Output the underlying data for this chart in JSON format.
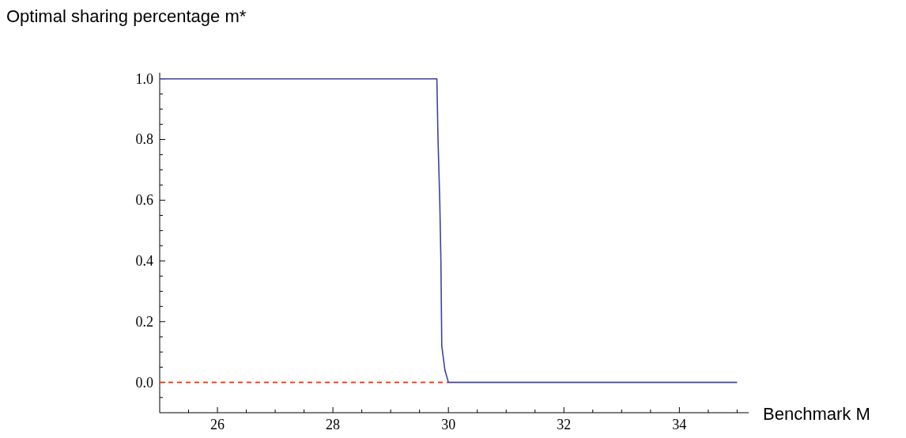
{
  "chart_data": {
    "type": "line",
    "ylabel": "Optimal sharing percentage m*",
    "xlabel": "Benchmark M",
    "xlim": [
      25,
      35.2
    ],
    "ylim": [
      -0.1,
      1.02
    ],
    "xticks": [
      {
        "value": 25.5,
        "label": null
      },
      26,
      {
        "value": 26.5,
        "label": null
      },
      {
        "value": 27,
        "label": null
      },
      {
        "value": 27.5,
        "label": null
      },
      28,
      {
        "value": 28.5,
        "label": null
      },
      {
        "value": 29,
        "label": null
      },
      {
        "value": 29.5,
        "label": null
      },
      30,
      {
        "value": 30.5,
        "label": null
      },
      {
        "value": 31,
        "label": null
      },
      {
        "value": 31.5,
        "label": null
      },
      32,
      {
        "value": 32.5,
        "label": null
      },
      {
        "value": 33,
        "label": null
      },
      {
        "value": 33.5,
        "label": null
      },
      34,
      {
        "value": 34.5,
        "label": null
      },
      {
        "value": 35,
        "label": null
      }
    ],
    "yticks": [
      {
        "value": -0.05,
        "label": null
      },
      {
        "value": 0,
        "label": "0.0"
      },
      {
        "value": 0.05,
        "label": null
      },
      {
        "value": 0.1,
        "label": null
      },
      {
        "value": 0.15,
        "label": null
      },
      {
        "value": 0.2,
        "label": "0.2"
      },
      {
        "value": 0.25,
        "label": null
      },
      {
        "value": 0.3,
        "label": null
      },
      {
        "value": 0.35,
        "label": null
      },
      {
        "value": 0.4,
        "label": "0.4"
      },
      {
        "value": 0.45,
        "label": null
      },
      {
        "value": 0.5,
        "label": null
      },
      {
        "value": 0.55,
        "label": null
      },
      {
        "value": 0.6,
        "label": "0.6"
      },
      {
        "value": 0.65,
        "label": null
      },
      {
        "value": 0.7,
        "label": null
      },
      {
        "value": 0.75,
        "label": null
      },
      {
        "value": 0.8,
        "label": "0.8"
      },
      {
        "value": 0.85,
        "label": null
      },
      {
        "value": 0.9,
        "label": null
      },
      {
        "value": 0.95,
        "label": null
      },
      {
        "value": 1,
        "label": "1.0"
      }
    ],
    "series": [
      {
        "color": "#4040a0",
        "line_style": "solid",
        "x": [
          25,
          29.8,
          29.82,
          29.85,
          29.87,
          29.885,
          29.94,
          30,
          35
        ],
        "values": [
          1,
          1,
          0.8,
          0.6,
          0.4,
          0.12,
          0.04,
          0,
          0
        ]
      },
      {
        "color": "#ff2a00",
        "line_style": "dashed",
        "x": [
          25,
          30
        ],
        "values": [
          0,
          0
        ]
      }
    ]
  }
}
